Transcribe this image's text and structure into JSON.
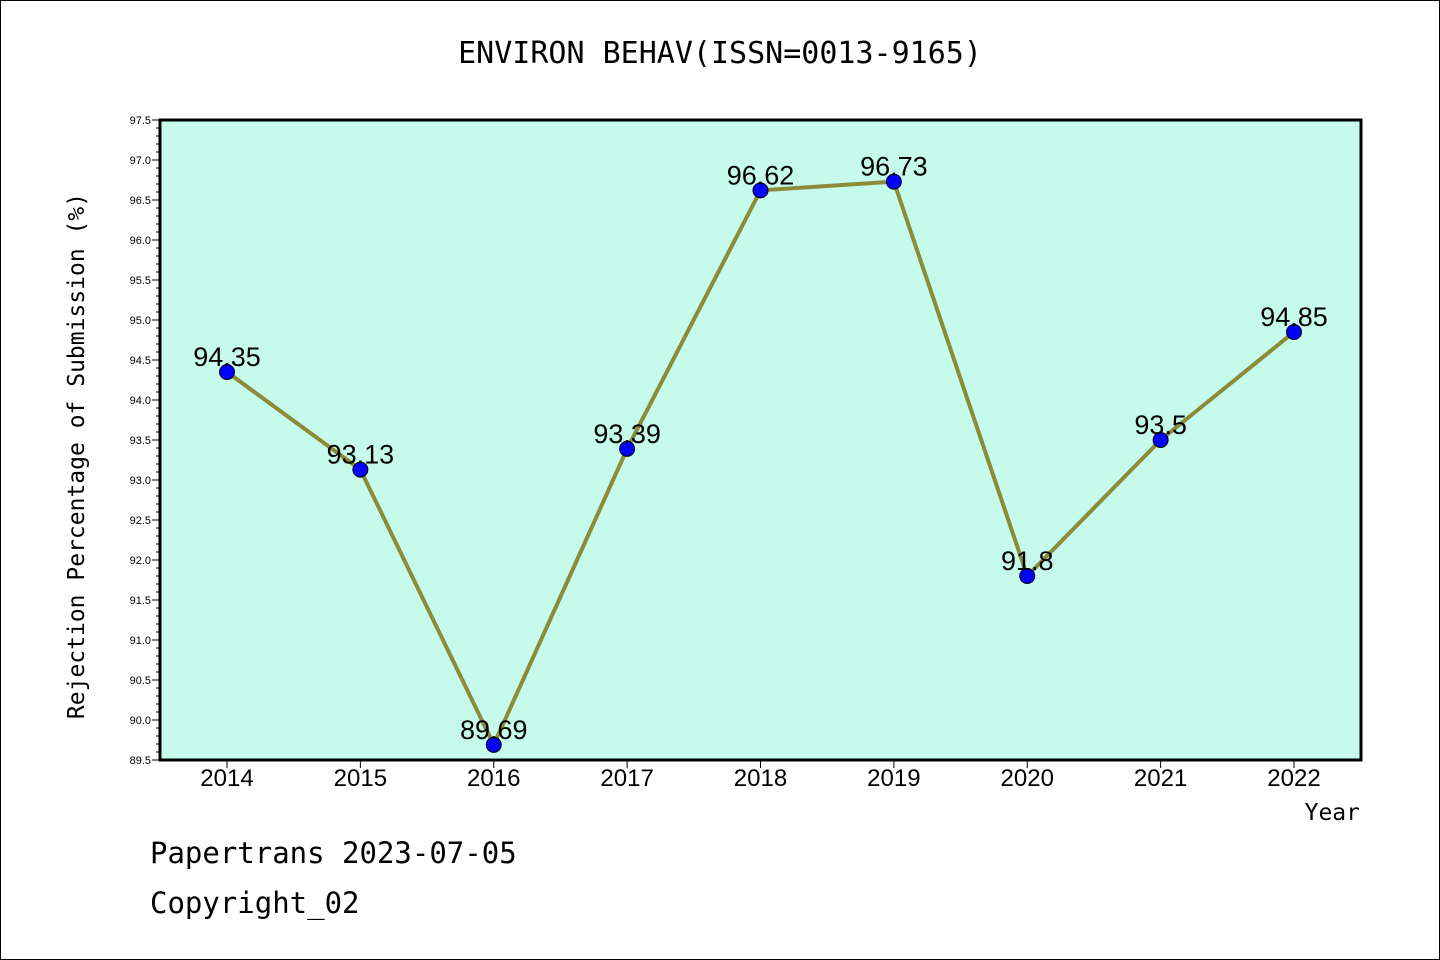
{
  "footer": {
    "line1": "Papertrans 2023-07-05",
    "line2": "Copyright_02"
  },
  "colors": {
    "plot_background": "#c6fbec",
    "line": "#8b8b3a",
    "marker": "#0000ff"
  },
  "chart_data": {
    "type": "line",
    "title": "ENVIRON BEHAV(ISSN=0013-9165)",
    "xlabel": "Year",
    "ylabel": "Rejection Percentage of Submission (%)",
    "categories": [
      "2014",
      "2015",
      "2016",
      "2017",
      "2018",
      "2019",
      "2020",
      "2021",
      "2022"
    ],
    "series": [
      {
        "values": [
          94.35,
          93.13,
          89.69,
          93.39,
          96.62,
          96.73,
          91.8,
          93.5,
          94.85
        ],
        "data_labels": [
          "94.35",
          "93.13",
          "89.69",
          "93.39",
          "96.62",
          "96.73",
          "91.8",
          "93.5",
          "94.85"
        ]
      }
    ],
    "ylim": [
      89.5,
      97.5
    ],
    "yticks": [
      "89.5",
      "90.0",
      "90.5",
      "91.0",
      "91.5",
      "92.0",
      "92.5",
      "93.0",
      "93.5",
      "94.0",
      "94.5",
      "95.0",
      "95.5",
      "96.0",
      "96.5",
      "97.0",
      "97.5"
    ],
    "grid": false,
    "legend": "none"
  }
}
